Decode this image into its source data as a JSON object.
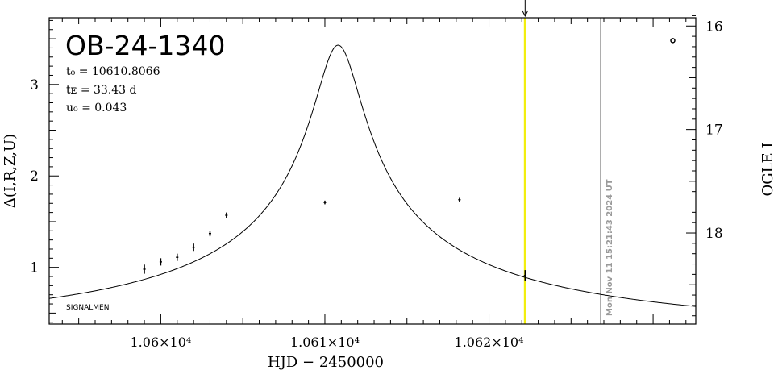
{
  "chart_data": {
    "type": "scatter",
    "title": "OB-24-1340",
    "params": [
      "t₀ = 10610.8066",
      "tᴇ = 33.43 d",
      "u₀ = 0.043"
    ],
    "footer_label": "SIGNALMEN",
    "timestamp": "Mon Nov 11 15:21:43 2024 UT",
    "xlabel": "HJD − 2450000",
    "ylabel_left": "Δ(I,R,Z,U)",
    "ylabel_right": "OGLE I",
    "x_ticks": [
      {
        "value": 10600,
        "label": "1.06×10⁴"
      },
      {
        "value": 10610,
        "label": "1.061×10⁴"
      },
      {
        "value": 10620,
        "label": "1.062×10⁴"
      }
    ],
    "y_ticks_left": [
      {
        "value": 1,
        "label": "1"
      },
      {
        "value": 2,
        "label": "2"
      },
      {
        "value": 3,
        "label": "3"
      }
    ],
    "y_ticks_right": [
      {
        "value": 16,
        "label": "16"
      },
      {
        "value": 17,
        "label": "17"
      },
      {
        "value": 18,
        "label": "18"
      }
    ],
    "xlim": [
      10593.2,
      10632.6
    ],
    "ylim_left": [
      0.38,
      3.73
    ],
    "ylim_right": [
      18.88,
      15.92
    ],
    "model": {
      "t0": 10610.8066,
      "tE": 33.43,
      "u0": 0.043
    },
    "points": [
      {
        "x": 10599.0,
        "y": 0.98,
        "err": 0.05
      },
      {
        "x": 10600.0,
        "y": 1.06,
        "err": 0.04
      },
      {
        "x": 10601.0,
        "y": 1.11,
        "err": 0.04
      },
      {
        "x": 10602.0,
        "y": 1.22,
        "err": 0.04
      },
      {
        "x": 10603.0,
        "y": 1.37,
        "err": 0.03
      },
      {
        "x": 10604.0,
        "y": 1.57,
        "err": 0.03
      },
      {
        "x": 10610.0,
        "y": 1.71,
        "err": 0.02
      },
      {
        "x": 10618.2,
        "y": 1.74,
        "err": 0.02
      },
      {
        "x": 10622.2,
        "y": 0.91,
        "err": 0.06
      }
    ],
    "open_point": {
      "x": 10631.2,
      "y": 3.48
    },
    "current_time_x": 10622.2,
    "current_time_color": "#f2ee0e",
    "timestamp_line_x": 10626.8,
    "timestamp_line_color": "#9a9a9a",
    "grid": false
  }
}
